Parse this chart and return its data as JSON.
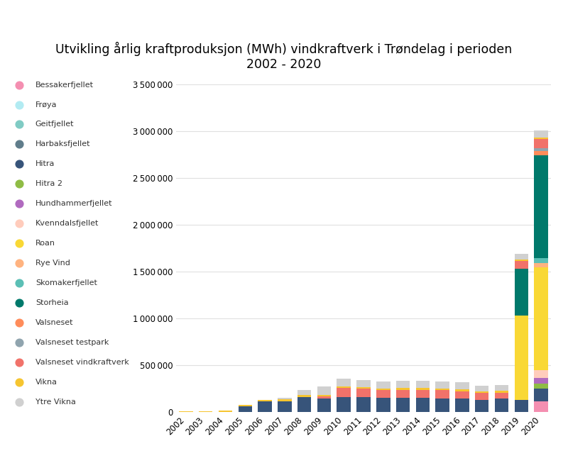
{
  "title": "Utvikling årlig kraftproduksjon (MWh) vindkraftverk i Trøndelag i perioden\n2002 - 2020",
  "years": [
    2002,
    2003,
    2004,
    2005,
    2006,
    2007,
    2008,
    2009,
    2010,
    2011,
    2012,
    2013,
    2014,
    2015,
    2016,
    2017,
    2018,
    2019,
    2020
  ],
  "series": {
    "Bessakerfjellet": [
      0,
      0,
      0,
      0,
      0,
      0,
      0,
      0,
      0,
      0,
      0,
      0,
      0,
      0,
      0,
      0,
      0,
      0,
      110000
    ],
    "Frøya": [
      0,
      0,
      0,
      0,
      0,
      0,
      0,
      0,
      0,
      0,
      0,
      0,
      0,
      0,
      0,
      0,
      0,
      0,
      0
    ],
    "Geitfjellet": [
      0,
      0,
      0,
      0,
      0,
      0,
      0,
      0,
      0,
      0,
      0,
      0,
      0,
      0,
      0,
      0,
      0,
      0,
      0
    ],
    "Harbaksfjellet": [
      0,
      0,
      0,
      0,
      0,
      0,
      0,
      0,
      0,
      0,
      0,
      0,
      0,
      0,
      0,
      0,
      0,
      0,
      0
    ],
    "Hitra": [
      0,
      0,
      0,
      60000,
      110000,
      115000,
      160000,
      145000,
      155000,
      155000,
      150000,
      150000,
      150000,
      145000,
      145000,
      130000,
      140000,
      130000,
      140000
    ],
    "Hitra 2": [
      0,
      0,
      0,
      0,
      0,
      0,
      0,
      0,
      0,
      0,
      0,
      0,
      0,
      0,
      0,
      0,
      0,
      0,
      55000
    ],
    "Hundhammerfjellet": [
      0,
      0,
      0,
      0,
      0,
      0,
      0,
      0,
      0,
      0,
      0,
      0,
      0,
      0,
      0,
      0,
      0,
      0,
      60000
    ],
    "Kvenndalsfjellet": [
      0,
      0,
      0,
      0,
      0,
      0,
      0,
      0,
      0,
      0,
      0,
      0,
      0,
      0,
      0,
      0,
      0,
      0,
      80000
    ],
    "Roan": [
      0,
      0,
      0,
      0,
      0,
      0,
      0,
      0,
      0,
      0,
      0,
      0,
      0,
      0,
      0,
      0,
      0,
      900000,
      1100000
    ],
    "Rye Vind": [
      0,
      0,
      0,
      0,
      0,
      0,
      0,
      0,
      0,
      0,
      0,
      0,
      0,
      0,
      0,
      0,
      0,
      0,
      45000
    ],
    "Skomakerfjellet": [
      0,
      0,
      0,
      0,
      0,
      0,
      0,
      0,
      0,
      0,
      0,
      0,
      0,
      0,
      0,
      0,
      0,
      0,
      50000
    ],
    "Storheia": [
      0,
      0,
      0,
      0,
      0,
      0,
      0,
      0,
      0,
      0,
      0,
      0,
      0,
      0,
      0,
      0,
      0,
      500000,
      1100000
    ],
    "Valsneset": [
      0,
      0,
      0,
      0,
      0,
      0,
      0,
      0,
      0,
      0,
      0,
      0,
      0,
      0,
      0,
      0,
      0,
      0,
      50000
    ],
    "Valsneset testpark": [
      0,
      0,
      0,
      0,
      0,
      0,
      0,
      0,
      0,
      0,
      0,
      0,
      0,
      0,
      0,
      0,
      0,
      0,
      25000
    ],
    "Valsneset vindkraftverk": [
      0,
      0,
      0,
      0,
      0,
      0,
      0,
      20000,
      100000,
      90000,
      80000,
      85000,
      85000,
      85000,
      75000,
      70000,
      65000,
      80000,
      100000
    ],
    "Vikna": [
      5000,
      8000,
      12000,
      18000,
      18000,
      18000,
      18000,
      18000,
      18000,
      18000,
      18000,
      18000,
      18000,
      18000,
      18000,
      18000,
      18000,
      18000,
      18000
    ],
    "Ytre Vikna": [
      0,
      0,
      0,
      0,
      0,
      20000,
      55000,
      85000,
      80000,
      80000,
      80000,
      80000,
      80000,
      80000,
      75000,
      60000,
      60000,
      60000,
      70000
    ]
  },
  "colors": {
    "Bessakerfjellet": "#f48fb1",
    "Frøya": "#b2ebf2",
    "Geitfjellet": "#80cbc4",
    "Harbaksfjellet": "#607d8b",
    "Hitra": "#37547a",
    "Hitra 2": "#8fbc45",
    "Hundhammerfjellet": "#b06abf",
    "Kvenndalsfjellet": "#ffccbc",
    "Roan": "#f9d835",
    "Rye Vind": "#ffb380",
    "Skomakerfjellet": "#5bbfb5",
    "Storheia": "#00796b",
    "Valsneset": "#ff8c5a",
    "Valsneset testpark": "#90a4ae",
    "Valsneset vindkraftverk": "#f1726a",
    "Vikna": "#f6c530",
    "Ytre Vikna": "#d0d0d0"
  },
  "ylim": [
    0,
    3600000
  ],
  "yticks": [
    0,
    500000,
    1000000,
    1500000,
    2000000,
    2500000,
    3000000,
    3500000
  ],
  "background_color": "#ffffff"
}
